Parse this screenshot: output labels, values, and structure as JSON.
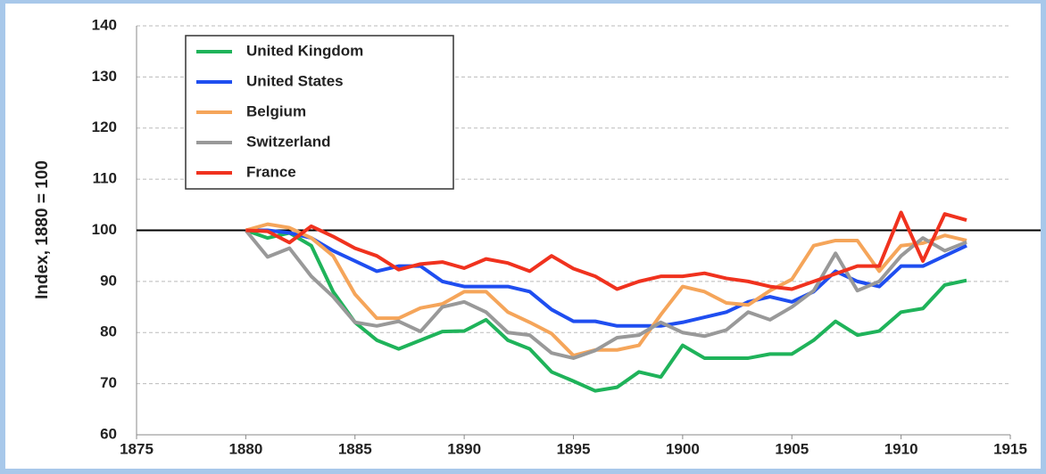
{
  "chart_data": {
    "type": "line",
    "y_label": "Index, 1880 = 100",
    "x": [
      1880,
      1881,
      1882,
      1883,
      1884,
      1885,
      1886,
      1887,
      1888,
      1889,
      1890,
      1891,
      1892,
      1893,
      1894,
      1895,
      1896,
      1897,
      1898,
      1899,
      1900,
      1901,
      1902,
      1903,
      1904,
      1905,
      1906,
      1907,
      1908,
      1909,
      1910,
      1911,
      1912,
      1913
    ],
    "series": [
      {
        "name": "United Kingdom",
        "color": "#1fb35a",
        "values": [
          100,
          98.5,
          99.5,
          97,
          88,
          82,
          78.5,
          76.8,
          78.5,
          80.2,
          80.3,
          82.5,
          78.5,
          76.8,
          72.3,
          70.5,
          68.6,
          69.3,
          72.3,
          71.3,
          77.5,
          75,
          75,
          75,
          75.8,
          75.8,
          78.5,
          82.2,
          79.5,
          80.3,
          84,
          84.7,
          89.3,
          90.2
        ]
      },
      {
        "name": "United States",
        "color": "#1f4ef0",
        "values": [
          100,
          100,
          99.5,
          98.5,
          96,
          94,
          92,
          93,
          93,
          90,
          89,
          89,
          89,
          88,
          84.5,
          82.2,
          82.2,
          81.3,
          81.3,
          81.3,
          82,
          83,
          84,
          86,
          87,
          86,
          88,
          92,
          90,
          89,
          93,
          93,
          95,
          97
        ]
      },
      {
        "name": "Belgium",
        "color": "#f5a55a",
        "values": [
          100,
          101.2,
          100.5,
          98.5,
          95,
          87.5,
          82.8,
          82.8,
          84.8,
          85.6,
          88,
          88,
          84,
          82,
          79.8,
          75.5,
          76.6,
          76.6,
          77.5,
          83.5,
          89,
          88,
          85.8,
          85.4,
          88.2,
          90.4,
          97,
          98,
          98,
          92,
          97,
          97.5,
          99,
          98
        ]
      },
      {
        "name": "Switzerland",
        "color": "#999999",
        "values": [
          100,
          94.8,
          96.5,
          91,
          87,
          82,
          81.3,
          82.2,
          80.2,
          85,
          86,
          84,
          80,
          79.5,
          76,
          75,
          76.5,
          79,
          79.5,
          82,
          80,
          79.3,
          80.5,
          84,
          82.5,
          85,
          88.2,
          95.5,
          88.2,
          90,
          95,
          98.5,
          96,
          97.7
        ]
      },
      {
        "name": "France",
        "color": "#f0321e",
        "values": [
          100,
          99.8,
          97.6,
          100.8,
          98.8,
          96.5,
          95,
          92.3,
          93.4,
          93.8,
          92.6,
          94.4,
          93.6,
          92,
          95,
          92.5,
          91,
          88.5,
          90,
          91,
          91,
          91.6,
          90.6,
          90,
          89,
          88.5,
          90,
          91.5,
          93,
          93,
          103.5,
          94,
          103.2,
          102
        ]
      }
    ],
    "reference_line": 100,
    "xlim": [
      1875,
      1915
    ],
    "xticks": [
      1875,
      1880,
      1885,
      1890,
      1895,
      1900,
      1905,
      1910,
      1915
    ],
    "ylim": [
      60,
      140
    ],
    "yticks": [
      60,
      70,
      80,
      90,
      100,
      110,
      120,
      130,
      140
    ],
    "grid": true,
    "legend": "upper left"
  }
}
